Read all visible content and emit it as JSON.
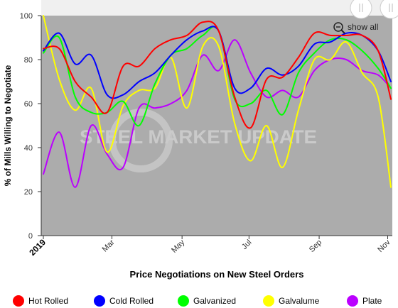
{
  "chart_data": {
    "type": "line",
    "title": "",
    "xlabel": "Price Negotiations on New Steel Orders",
    "ylabel": "% of Mills Willing to Negotiate",
    "ylim": [
      0,
      100
    ],
    "yticks": [
      "0",
      "20",
      "40",
      "60",
      "80",
      "100"
    ],
    "xlim": [
      0,
      21.8
    ],
    "xticks": [
      {
        "label": "2019",
        "x": 0,
        "bold": true
      },
      {
        "label": "Mar",
        "x": 4.3
      },
      {
        "label": "May",
        "x": 8.7
      },
      {
        "label": "Jul",
        "x": 12.9
      },
      {
        "label": "Sep",
        "x": 17.3
      },
      {
        "label": "Nov",
        "x": 21.6
      }
    ],
    "grid": false,
    "legend_position": "bottom",
    "zoom_label": "show all",
    "watermark": "STEEL MARKET UPDATE",
    "x": [
      0,
      1,
      2,
      3,
      4,
      5,
      6,
      7,
      8,
      9,
      10,
      11,
      12,
      13,
      14,
      15,
      16,
      17,
      18,
      19,
      20,
      21,
      21.8
    ],
    "series": [
      {
        "name": "Hot Rolled",
        "color": "#ff0000",
        "values": [
          85,
          85,
          70,
          63,
          56,
          77,
          77,
          85,
          89,
          91,
          97,
          93,
          63,
          49,
          71,
          72,
          81,
          92,
          91,
          91,
          91,
          84,
          62
        ]
      },
      {
        "name": "Cold Rolled",
        "color": "#0000ff",
        "values": [
          84,
          92,
          78,
          82,
          64,
          64,
          70,
          74,
          82,
          89,
          93,
          93,
          67,
          67,
          76,
          73,
          77,
          87,
          88,
          92,
          91,
          84,
          70
        ]
      },
      {
        "name": "Galvanized",
        "color": "#00ff00",
        "values": [
          83,
          90,
          63,
          56,
          56,
          61,
          50,
          69,
          82,
          85,
          91,
          93,
          62,
          60,
          66,
          55,
          74,
          83,
          89,
          89,
          84,
          76,
          67
        ]
      },
      {
        "name": "Galvalume",
        "color": "#ffff00",
        "values": [
          100,
          71,
          57,
          67,
          38,
          59,
          66,
          67,
          81,
          58,
          86,
          86,
          51,
          34,
          50,
          31,
          57,
          80,
          80,
          88,
          74,
          63,
          22
        ]
      },
      {
        "name": "Plate",
        "color": "#bb00ff",
        "values": [
          28,
          47,
          22,
          50,
          37,
          31,
          58,
          58,
          60,
          66,
          82,
          75,
          89,
          74,
          63,
          66,
          63,
          75,
          80,
          80,
          75,
          73,
          67
        ]
      }
    ]
  }
}
